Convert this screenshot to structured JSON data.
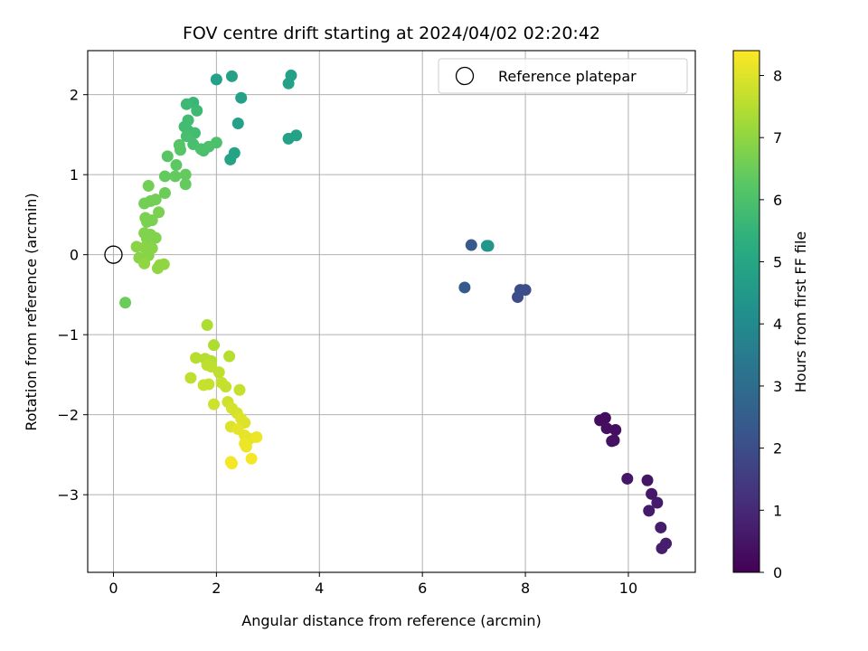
{
  "chart_data": {
    "type": "scatter",
    "title": "FOV centre drift starting at 2024/04/02 02:20:42",
    "xlabel": "Angular distance from reference (arcmin)",
    "ylabel": "Rotation from reference (arcmin)",
    "xlim": [
      -0.5,
      11.3
    ],
    "ylim": [
      -3.97,
      2.55
    ],
    "xticks": [
      0,
      2,
      4,
      6,
      8,
      10
    ],
    "yticks": [
      -3,
      -2,
      -1,
      0,
      1,
      2
    ],
    "grid": true,
    "legend": {
      "label": "Reference platepar",
      "placement": "top-right"
    },
    "reference_point": {
      "x": 0,
      "y": 0
    },
    "colorbar": {
      "label": "Hours from first FF file",
      "colormap": "viridis",
      "range": [
        0,
        8.4
      ],
      "ticks": [
        0,
        1,
        2,
        3,
        4,
        5,
        6,
        7,
        8
      ]
    },
    "points": [
      [
        9.45,
        -2.07,
        0.3
      ],
      [
        9.55,
        -2.04,
        0.3
      ],
      [
        9.58,
        -2.17,
        0.35
      ],
      [
        9.75,
        -2.19,
        0.35
      ],
      [
        9.68,
        -2.33,
        0.4
      ],
      [
        9.72,
        -2.32,
        0.4
      ],
      [
        9.98,
        -2.8,
        0.5
      ],
      [
        10.37,
        -2.82,
        0.5
      ],
      [
        10.45,
        -2.99,
        0.55
      ],
      [
        10.56,
        -3.1,
        0.6
      ],
      [
        10.4,
        -3.2,
        0.6
      ],
      [
        10.63,
        -3.41,
        0.65
      ],
      [
        10.73,
        -3.61,
        0.7
      ],
      [
        10.65,
        -3.67,
        0.7
      ],
      [
        6.95,
        0.12,
        2.35
      ],
      [
        6.82,
        -0.41,
        2.4
      ],
      [
        7.85,
        -0.53,
        2.0
      ],
      [
        7.9,
        -0.44,
        2.0
      ],
      [
        8.0,
        -0.44,
        2.0
      ],
      [
        7.25,
        0.11,
        4.4
      ],
      [
        7.28,
        0.11,
        4.4
      ],
      [
        2.0,
        2.19,
        4.8
      ],
      [
        2.3,
        2.23,
        4.8
      ],
      [
        3.45,
        2.24,
        4.8
      ],
      [
        3.4,
        2.14,
        4.8
      ],
      [
        2.48,
        1.96,
        4.8
      ],
      [
        2.42,
        1.64,
        4.8
      ],
      [
        3.4,
        1.45,
        4.85
      ],
      [
        3.55,
        1.49,
        4.85
      ],
      [
        2.35,
        1.27,
        4.9
      ],
      [
        2.27,
        1.19,
        4.9
      ],
      [
        1.55,
        1.9,
        5.6
      ],
      [
        1.42,
        1.88,
        5.7
      ],
      [
        1.62,
        1.8,
        5.7
      ],
      [
        1.45,
        1.68,
        5.8
      ],
      [
        1.38,
        1.6,
        5.8
      ],
      [
        1.45,
        1.55,
        5.8
      ],
      [
        1.58,
        1.52,
        5.8
      ],
      [
        1.42,
        1.48,
        5.9
      ],
      [
        1.55,
        1.38,
        5.9
      ],
      [
        1.75,
        1.3,
        5.9
      ],
      [
        1.85,
        1.35,
        6.0
      ],
      [
        2.0,
        1.4,
        6.0
      ],
      [
        1.7,
        1.32,
        6.0
      ],
      [
        1.28,
        1.37,
        6.2
      ],
      [
        1.3,
        1.31,
        6.2
      ],
      [
        1.05,
        1.23,
        6.2
      ],
      [
        1.22,
        1.12,
        6.3
      ],
      [
        1.2,
        0.98,
        6.4
      ],
      [
        1.0,
        0.98,
        6.4
      ],
      [
        1.4,
        1.0,
        6.4
      ],
      [
        1.4,
        0.88,
        6.4
      ],
      [
        1.0,
        0.77,
        6.5
      ],
      [
        0.68,
        0.86,
        6.6
      ],
      [
        0.6,
        0.64,
        6.6
      ],
      [
        0.82,
        0.69,
        6.6
      ],
      [
        0.72,
        0.67,
        6.6
      ],
      [
        0.88,
        0.53,
        6.7
      ],
      [
        0.62,
        0.46,
        6.7
      ],
      [
        0.65,
        0.41,
        6.7
      ],
      [
        0.75,
        0.43,
        6.7
      ],
      [
        0.6,
        0.27,
        6.8
      ],
      [
        0.65,
        0.2,
        6.8
      ],
      [
        0.82,
        0.21,
        6.8
      ],
      [
        0.72,
        0.25,
        6.8
      ],
      [
        0.45,
        0.1,
        6.9
      ],
      [
        0.6,
        0.09,
        6.9
      ],
      [
        0.75,
        0.08,
        6.9
      ],
      [
        0.5,
        -0.04,
        6.9
      ],
      [
        0.68,
        -0.01,
        6.9
      ],
      [
        0.6,
        -0.11,
        7.0
      ],
      [
        0.9,
        -0.13,
        7.0
      ],
      [
        0.98,
        -0.12,
        7.0
      ],
      [
        0.86,
        -0.17,
        7.0
      ],
      [
        0.23,
        -0.6,
        6.5
      ],
      [
        1.82,
        -0.88,
        7.4
      ],
      [
        1.95,
        -1.13,
        7.4
      ],
      [
        2.25,
        -1.27,
        7.5
      ],
      [
        1.6,
        -1.29,
        7.5
      ],
      [
        1.78,
        -1.3,
        7.5
      ],
      [
        1.9,
        -1.33,
        7.5
      ],
      [
        1.82,
        -1.38,
        7.6
      ],
      [
        1.9,
        -1.4,
        7.6
      ],
      [
        2.05,
        -1.47,
        7.6
      ],
      [
        1.5,
        -1.54,
        7.6
      ],
      [
        2.1,
        -1.6,
        7.7
      ],
      [
        1.75,
        -1.63,
        7.7
      ],
      [
        1.85,
        -1.62,
        7.7
      ],
      [
        2.18,
        -1.65,
        7.7
      ],
      [
        2.45,
        -1.69,
        7.7
      ],
      [
        1.95,
        -1.87,
        7.8
      ],
      [
        2.22,
        -1.84,
        7.8
      ],
      [
        2.3,
        -1.92,
        7.9
      ],
      [
        2.4,
        -1.98,
        7.9
      ],
      [
        2.48,
        -2.05,
        8.0
      ],
      [
        2.55,
        -2.1,
        8.0
      ],
      [
        2.28,
        -2.15,
        8.0
      ],
      [
        2.42,
        -2.18,
        8.1
      ],
      [
        2.55,
        -2.26,
        8.1
      ],
      [
        2.65,
        -2.3,
        8.1
      ],
      [
        2.78,
        -2.28,
        8.2
      ],
      [
        2.55,
        -2.36,
        8.2
      ],
      [
        2.58,
        -2.4,
        8.2
      ],
      [
        2.68,
        -2.55,
        8.3
      ],
      [
        2.28,
        -2.59,
        8.3
      ],
      [
        2.3,
        -2.61,
        8.3
      ]
    ]
  }
}
